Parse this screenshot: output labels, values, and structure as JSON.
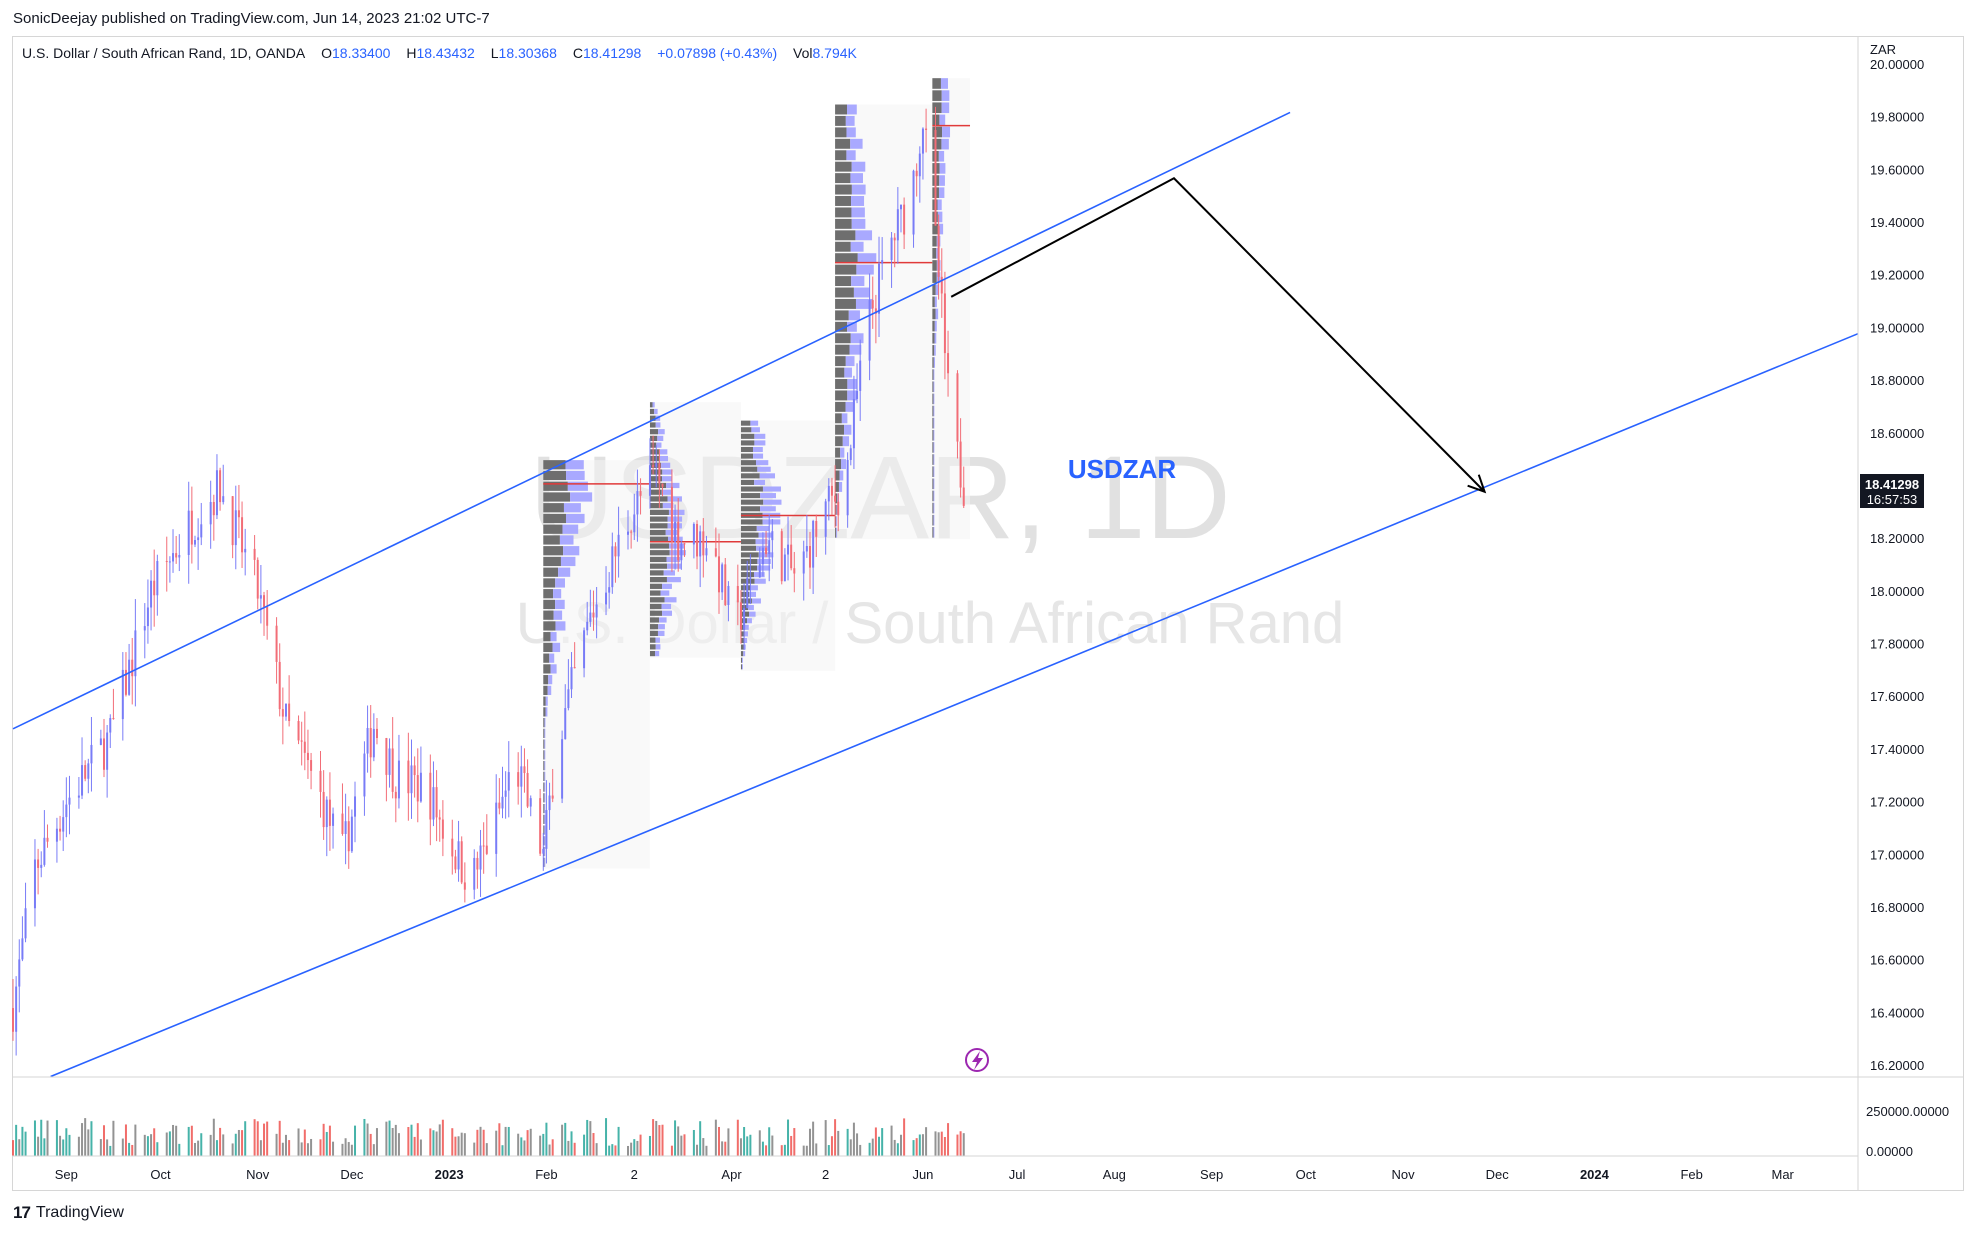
{
  "publisher": "SonicDeejay published on TradingView.com, Jun 14, 2023 21:02 UTC-7",
  "legend": {
    "symbol": "U.S. Dollar / South African Rand, 1D, OANDA",
    "open_label": "O",
    "open": "18.33400",
    "high_label": "H",
    "high": "18.43432",
    "low_label": "L",
    "low": "18.30368",
    "close_label": "C",
    "close": "18.41298",
    "change": "+0.07898 (+0.43%)",
    "vol_label": "Vol",
    "vol": "8.794K"
  },
  "watermark": {
    "line1": "USDZAR, 1D",
    "line2": "U.S. Dollar / South African Rand"
  },
  "annotation_label": "USDZAR",
  "currency": "ZAR",
  "footer": "TradingView",
  "colors": {
    "up": "#787cf7",
    "down": "#f26d77",
    "channel": "#2962ff",
    "label_blue": "#2962ff",
    "arrow": "#000000",
    "poc": "#e03a3a",
    "profile_gray": "#6e6e6e",
    "profile_blue": "#a9a9ff",
    "vol_green": "#26a69a",
    "vol_red": "#ef5350",
    "vol_gray": "#808080"
  },
  "chart_data": {
    "type": "candlestick",
    "symbol": "USDZAR",
    "timeframe": "1D",
    "ylim": [
      16.2,
      20.0
    ],
    "y_ticks": [
      "16.20000",
      "16.40000",
      "16.60000",
      "16.80000",
      "17.00000",
      "17.20000",
      "17.40000",
      "17.60000",
      "17.80000",
      "18.00000",
      "18.20000",
      "18.40000",
      "18.60000",
      "18.80000",
      "19.00000",
      "19.20000",
      "19.40000",
      "19.60000",
      "19.80000",
      "20.00000"
    ],
    "x_labels": [
      "Sep",
      "Oct",
      "Nov",
      "Dec",
      "2023",
      "Feb",
      "2",
      "Apr",
      "2",
      "Jun",
      "Jul",
      "Aug",
      "Sep",
      "Oct",
      "Nov",
      "Dec",
      "2024",
      "Feb",
      "Mar"
    ],
    "x_label_bold": [
      "2023",
      "2024"
    ],
    "x_start": "2022-08-15",
    "x_end": "2024-03-25",
    "last_price": "18.41298",
    "countdown": "16:57:53",
    "volume_ticks": [
      "250000.00000",
      "0.00000"
    ],
    "anchor_points": [
      [
        "2022-08-15",
        16.42
      ],
      [
        "2022-08-22",
        16.95
      ],
      [
        "2022-09-01",
        17.2
      ],
      [
        "2022-09-15",
        17.45
      ],
      [
        "2022-09-28",
        18.0
      ],
      [
        "2022-10-10",
        18.25
      ],
      [
        "2022-10-20",
        18.4
      ],
      [
        "2022-11-01",
        18.0
      ],
      [
        "2022-11-10",
        17.5
      ],
      [
        "2022-11-20",
        17.25
      ],
      [
        "2022-11-28",
        17.0
      ],
      [
        "2022-12-08",
        17.5
      ],
      [
        "2022-12-15",
        17.3
      ],
      [
        "2022-12-25",
        17.25
      ],
      [
        "2023-01-01",
        17.05
      ],
      [
        "2023-01-08",
        16.9
      ],
      [
        "2023-01-15",
        17.1
      ],
      [
        "2023-01-22",
        17.35
      ],
      [
        "2023-01-31",
        17.0
      ],
      [
        "2023-02-04",
        17.4
      ],
      [
        "2023-02-15",
        17.9
      ],
      [
        "2023-02-28",
        18.3
      ],
      [
        "2023-03-08",
        18.45
      ],
      [
        "2023-03-15",
        18.2
      ],
      [
        "2023-03-25",
        18.2
      ],
      [
        "2023-04-02",
        17.85
      ],
      [
        "2023-04-12",
        18.2
      ],
      [
        "2023-04-22",
        18.05
      ],
      [
        "2023-04-30",
        18.3
      ],
      [
        "2023-05-07",
        18.4
      ],
      [
        "2023-05-14",
        19.0
      ],
      [
        "2023-05-21",
        19.3
      ],
      [
        "2023-05-28",
        19.5
      ],
      [
        "2023-06-01",
        19.8
      ],
      [
        "2023-06-06",
        19.2
      ],
      [
        "2023-06-10",
        18.6
      ],
      [
        "2023-06-14",
        18.41
      ]
    ],
    "channel_upper": [
      [
        "2022-08-15",
        17.48
      ],
      [
        "2023-09-26",
        19.82
      ]
    ],
    "channel_lower": [
      [
        "2022-08-27",
        16.16
      ],
      [
        "2024-03-25",
        18.98
      ]
    ],
    "arrow_path": [
      [
        "2023-06-10",
        19.12
      ],
      [
        "2023-08-20",
        19.57
      ],
      [
        "2023-11-27",
        18.38
      ]
    ],
    "volume_profiles": [
      {
        "from": "2023-01-31",
        "to": "2023-03-06",
        "low": 16.95,
        "high": 18.5,
        "poc": 18.41,
        "kind": "split"
      },
      {
        "from": "2023-03-06",
        "to": "2023-04-04",
        "low": 17.75,
        "high": 18.72,
        "poc": 18.19,
        "kind": "split"
      },
      {
        "from": "2023-04-04",
        "to": "2023-05-04",
        "low": 17.7,
        "high": 18.65,
        "poc": 18.29,
        "kind": "split"
      },
      {
        "from": "2023-05-04",
        "to": "2023-06-04",
        "low": 18.2,
        "high": 19.85,
        "poc": 19.25,
        "kind": "split"
      },
      {
        "from": "2023-06-04",
        "to": "2023-06-16",
        "low": 18.2,
        "high": 19.95,
        "poc": 19.77,
        "kind": "split"
      }
    ]
  }
}
